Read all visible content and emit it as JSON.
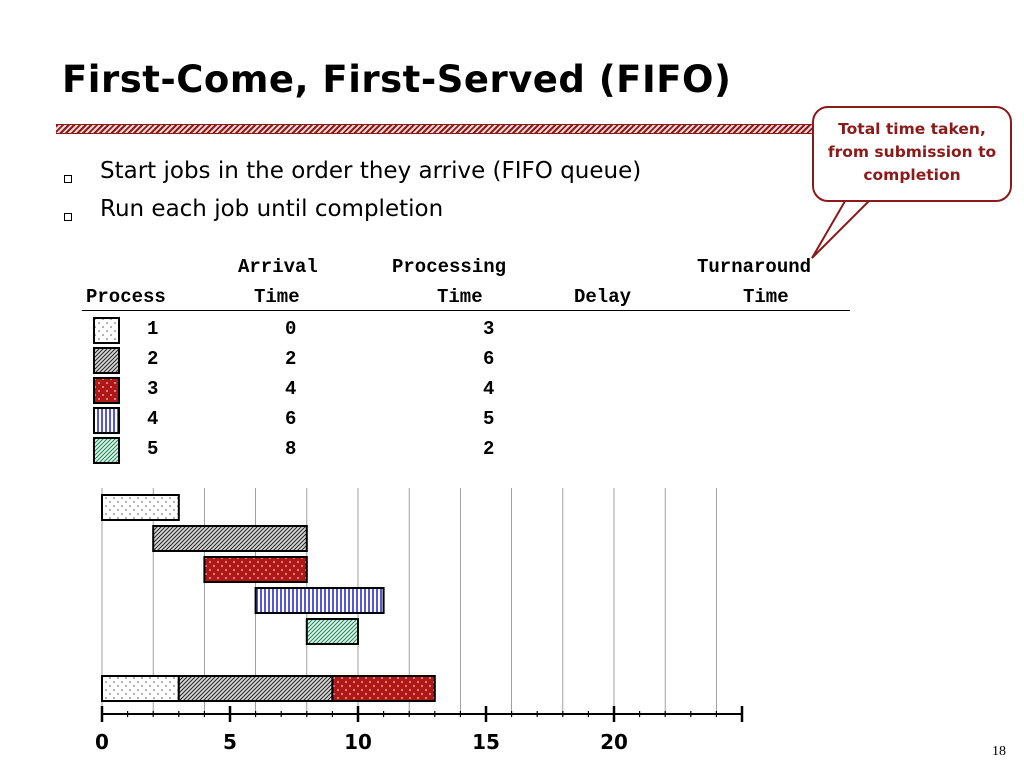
{
  "slide": {
    "title": "First-Come, First-Served (FIFO)",
    "bullets": [
      "Start jobs in the order they arrive (FIFO queue)",
      "Run each job until completion"
    ],
    "callout": [
      "Total time taken,",
      "from submission to",
      "completion"
    ],
    "page_number": "18"
  },
  "table": {
    "headers": {
      "process": "Process",
      "arrival_top": "Arrival",
      "arrival_bottom": "Time",
      "processing_top": "Processing",
      "processing_bottom": "Time",
      "delay": "Delay",
      "turnaround_top": "Turnaround",
      "turnaround_bottom": "Time"
    },
    "rows": [
      {
        "process": "1",
        "arrival": "0",
        "processing": "3",
        "pattern": "dots-white"
      },
      {
        "process": "2",
        "arrival": "2",
        "processing": "6",
        "pattern": "hatch-gray"
      },
      {
        "process": "3",
        "arrival": "4",
        "processing": "4",
        "pattern": "dots-red"
      },
      {
        "process": "4",
        "arrival": "6",
        "processing": "5",
        "pattern": "stripes-blue"
      },
      {
        "process": "5",
        "arrival": "8",
        "processing": "2",
        "pattern": "hatch-green"
      }
    ]
  },
  "colors": {
    "accent": "#8b1a1a",
    "process_3": "#b01818",
    "process_4": "#6a6ae0",
    "process_5": "#8fd6b3"
  },
  "chart_data": {
    "type": "gantt",
    "x_ticks": [
      "0",
      "5",
      "10",
      "15",
      "20"
    ],
    "xlim": [
      0,
      25
    ],
    "arrivals": [
      {
        "process": "1",
        "start": 0,
        "end": 3
      },
      {
        "process": "2",
        "start": 2,
        "end": 8
      },
      {
        "process": "3",
        "start": 4,
        "end": 8
      },
      {
        "process": "4",
        "start": 6,
        "end": 11
      },
      {
        "process": "5",
        "start": 8,
        "end": 10
      }
    ],
    "schedule": [
      {
        "process": "1",
        "start": 0,
        "end": 3
      },
      {
        "process": "2",
        "start": 3,
        "end": 9
      },
      {
        "process": "3",
        "start": 9,
        "end": 13
      }
    ]
  }
}
